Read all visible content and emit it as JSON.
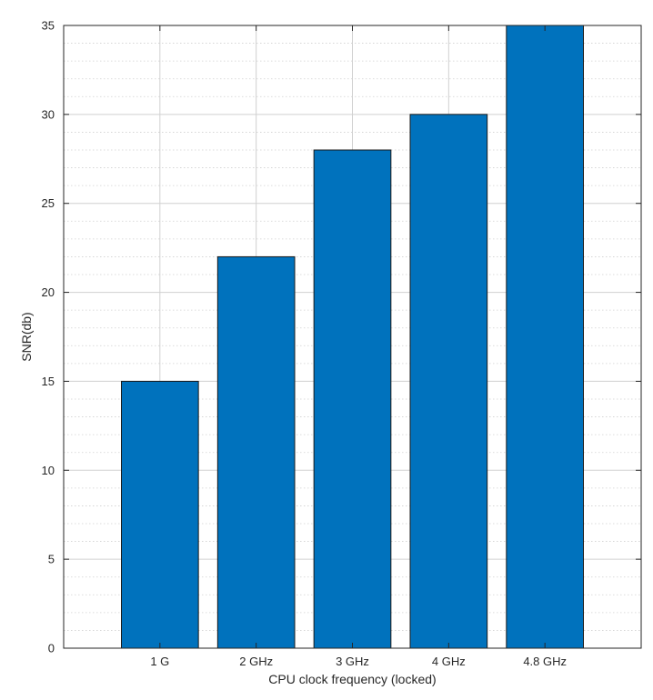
{
  "chart_data": {
    "type": "bar",
    "categories": [
      "1 G",
      "2 GHz",
      "3 GHz",
      "4 GHz",
      "4.8 GHz"
    ],
    "values": [
      15,
      22,
      28,
      30,
      35
    ],
    "title": "",
    "xlabel": "CPU clock frequency (locked)",
    "ylabel": "SNR(db)",
    "ylim": [
      0,
      35
    ],
    "yticks": [
      0,
      5,
      10,
      15,
      20,
      25,
      30,
      35
    ],
    "minor_step": 1,
    "grid": true,
    "minor_grid": true,
    "bar_color": "#0072BD",
    "bar_edge_color": "#1a1a1a",
    "grid_color": "#d0d0d0",
    "axis_color": "#262626"
  }
}
